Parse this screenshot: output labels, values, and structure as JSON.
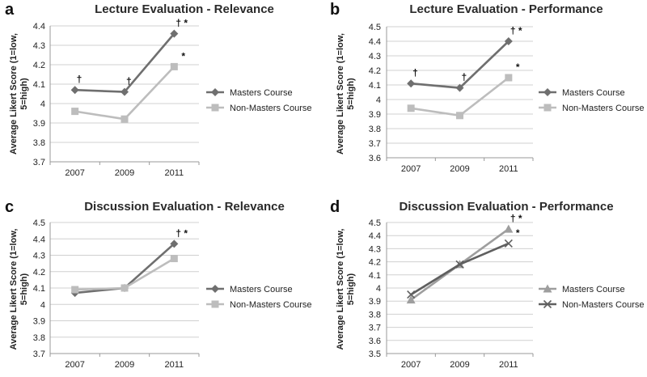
{
  "chart_data": [
    {
      "panel": "a",
      "type": "line",
      "title": "Lecture Evaluation - Relevance",
      "xlabel": "",
      "ylabel": "Average Likert Score (1=low, 5=high)",
      "ylabel_lines": [
        "Average Likert Score (1=low,",
        "5=high)"
      ],
      "ylim": [
        3.7,
        4.4
      ],
      "ytick_step": 0.1,
      "ytick_labels": [
        "3.7",
        "3.8",
        "3.9",
        "4",
        "4.1",
        "4.2",
        "4.3",
        "4.4"
      ],
      "categories": [
        "2007",
        "2009",
        "2011"
      ],
      "grid": true,
      "legend": "right",
      "series": [
        {
          "name": "Masters Course",
          "values": [
            4.07,
            4.06,
            4.36
          ],
          "color": "#6f6f6f",
          "marker": "diamond",
          "annotations": [
            "†",
            "†",
            "† *"
          ]
        },
        {
          "name": "Non-Masters Course",
          "values": [
            3.96,
            3.92,
            4.19
          ],
          "color": "#bdbdbd",
          "marker": "square",
          "annotations": [
            "",
            "",
            "*"
          ]
        }
      ]
    },
    {
      "panel": "b",
      "type": "line",
      "title": "Lecture Evaluation - Performance",
      "xlabel": "",
      "ylabel": "Average Likert Score (1=low, 5=high)",
      "ylabel_lines": [
        "Average Likert Score (1=low,",
        "5=high)"
      ],
      "ylim": [
        3.6,
        4.5
      ],
      "ytick_step": 0.1,
      "ytick_labels": [
        "3.6",
        "3.7",
        "3.8",
        "3.9",
        "4",
        "4.1",
        "4.2",
        "4.3",
        "4.4",
        "4.5"
      ],
      "categories": [
        "2007",
        "2009",
        "2011"
      ],
      "grid": true,
      "legend": "right",
      "series": [
        {
          "name": "Masters Course",
          "values": [
            4.11,
            4.08,
            4.4
          ],
          "color": "#6f6f6f",
          "marker": "diamond",
          "annotations": [
            "†",
            "†",
            "† *"
          ]
        },
        {
          "name": "Non-Masters Course",
          "values": [
            3.94,
            3.89,
            4.15
          ],
          "color": "#bdbdbd",
          "marker": "square",
          "annotations": [
            "",
            "",
            "*"
          ]
        }
      ]
    },
    {
      "panel": "c",
      "type": "line",
      "title": "Discussion Evaluation - Relevance",
      "xlabel": "",
      "ylabel": "Average Likert Score (1=low, 5=high)",
      "ylabel_lines": [
        "Average Likert Score (1=low,",
        "5=high)"
      ],
      "ylim": [
        3.7,
        4.5
      ],
      "ytick_step": 0.1,
      "ytick_labels": [
        "3.7",
        "3.8",
        "3.9",
        "4",
        "4.1",
        "4.2",
        "4.3",
        "4.4",
        "4.5"
      ],
      "categories": [
        "2007",
        "2009",
        "2011"
      ],
      "grid": true,
      "legend": "right",
      "series": [
        {
          "name": "Masters Course",
          "values": [
            4.07,
            4.1,
            4.37
          ],
          "color": "#6f6f6f",
          "marker": "diamond",
          "annotations": [
            "",
            "",
            "† *"
          ]
        },
        {
          "name": "Non-Masters Course",
          "values": [
            4.09,
            4.1,
            4.28
          ],
          "color": "#bdbdbd",
          "marker": "square",
          "annotations": [
            "",
            "",
            ""
          ]
        }
      ]
    },
    {
      "panel": "d",
      "type": "line",
      "title": "Discussion Evaluation - Performance",
      "xlabel": "",
      "ylabel": "Average Likert Score (1=low, 5=high)",
      "ylabel_lines": [
        "Average Likert Score (1=low,",
        "5=high)"
      ],
      "ylim": [
        3.5,
        4.5
      ],
      "ytick_step": 0.1,
      "ytick_labels": [
        "3.5",
        "3.6",
        "3.7",
        "3.8",
        "3.9",
        "4",
        "4.1",
        "4.2",
        "4.3",
        "4.4",
        "4.5"
      ],
      "categories": [
        "2007",
        "2009",
        "2011"
      ],
      "grid": true,
      "legend": "right",
      "series": [
        {
          "name": "Masters Course",
          "values": [
            3.91,
            4.18,
            4.45
          ],
          "color": "#9e9e9e",
          "marker": "triangle",
          "annotations": [
            "",
            "",
            "† *"
          ]
        },
        {
          "name": "Non-Masters Course",
          "values": [
            3.95,
            4.18,
            4.34
          ],
          "color": "#5f5f5f",
          "marker": "x",
          "annotations": [
            "",
            "",
            "*"
          ]
        }
      ]
    }
  ]
}
